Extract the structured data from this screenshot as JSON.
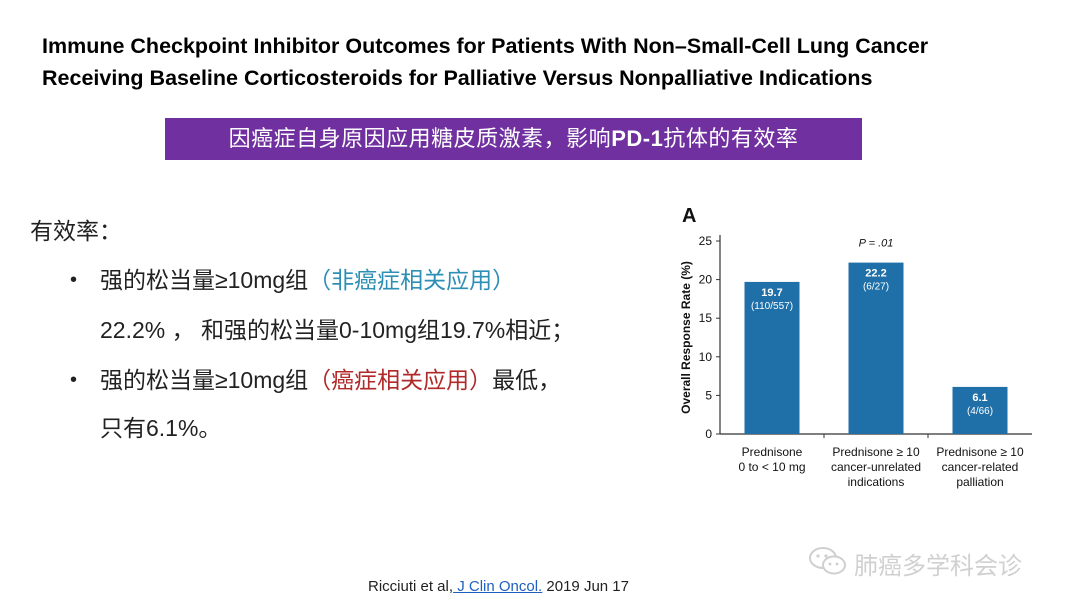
{
  "title": {
    "line1": "Immune Checkpoint Inhibitor Outcomes for Patients With Non–Small-Cell Lung Cancer",
    "line2": "Receiving Baseline Corticosteroids for Palliative Versus Nonpalliative Indications"
  },
  "banner": {
    "pre": "因癌症自身原因应用糖皮质激素，影响",
    "bold": "PD-1",
    "post": "抗体的有效率"
  },
  "content": {
    "heading": "有效率：",
    "bullet1": {
      "a": "强的松当量≥10mg组",
      "b": "（非癌症相关应用）",
      "c": "22.2% ， 和强的松当量0-10mg组19.7%相近；"
    },
    "bullet2": {
      "a": "强的松当量≥10mg组",
      "b": "（癌症相关应用）",
      "c": "最低，",
      "d": "只有6.1%。"
    }
  },
  "chart_data": {
    "type": "bar",
    "panel_label": "A",
    "ylabel": "Overall Response Rate (%)",
    "ylim": [
      0,
      25
    ],
    "yticks": [
      0,
      5,
      10,
      15,
      20,
      25
    ],
    "categories": [
      [
        "Prednisone",
        "0 to < 10 mg"
      ],
      [
        "Prednisone ≥ 10",
        "cancer-unrelated",
        "indications"
      ],
      [
        "Prednisone ≥ 10",
        "cancer-related",
        "palliation"
      ]
    ],
    "values": [
      19.7,
      22.2,
      6.1
    ],
    "value_labels": [
      "19.7",
      "22.2",
      "6.1"
    ],
    "count_labels": [
      "(110/557)",
      "(6/27)",
      "(4/66)"
    ],
    "annotation": "P = .01",
    "bar_color": "#1f6fa8"
  },
  "citation": {
    "prefix": "Ricciuti et al,",
    "link": " J Clin Oncol.",
    "suffix": " 2019 Jun 17"
  },
  "watermark": {
    "text": "肺癌多学科会诊"
  }
}
